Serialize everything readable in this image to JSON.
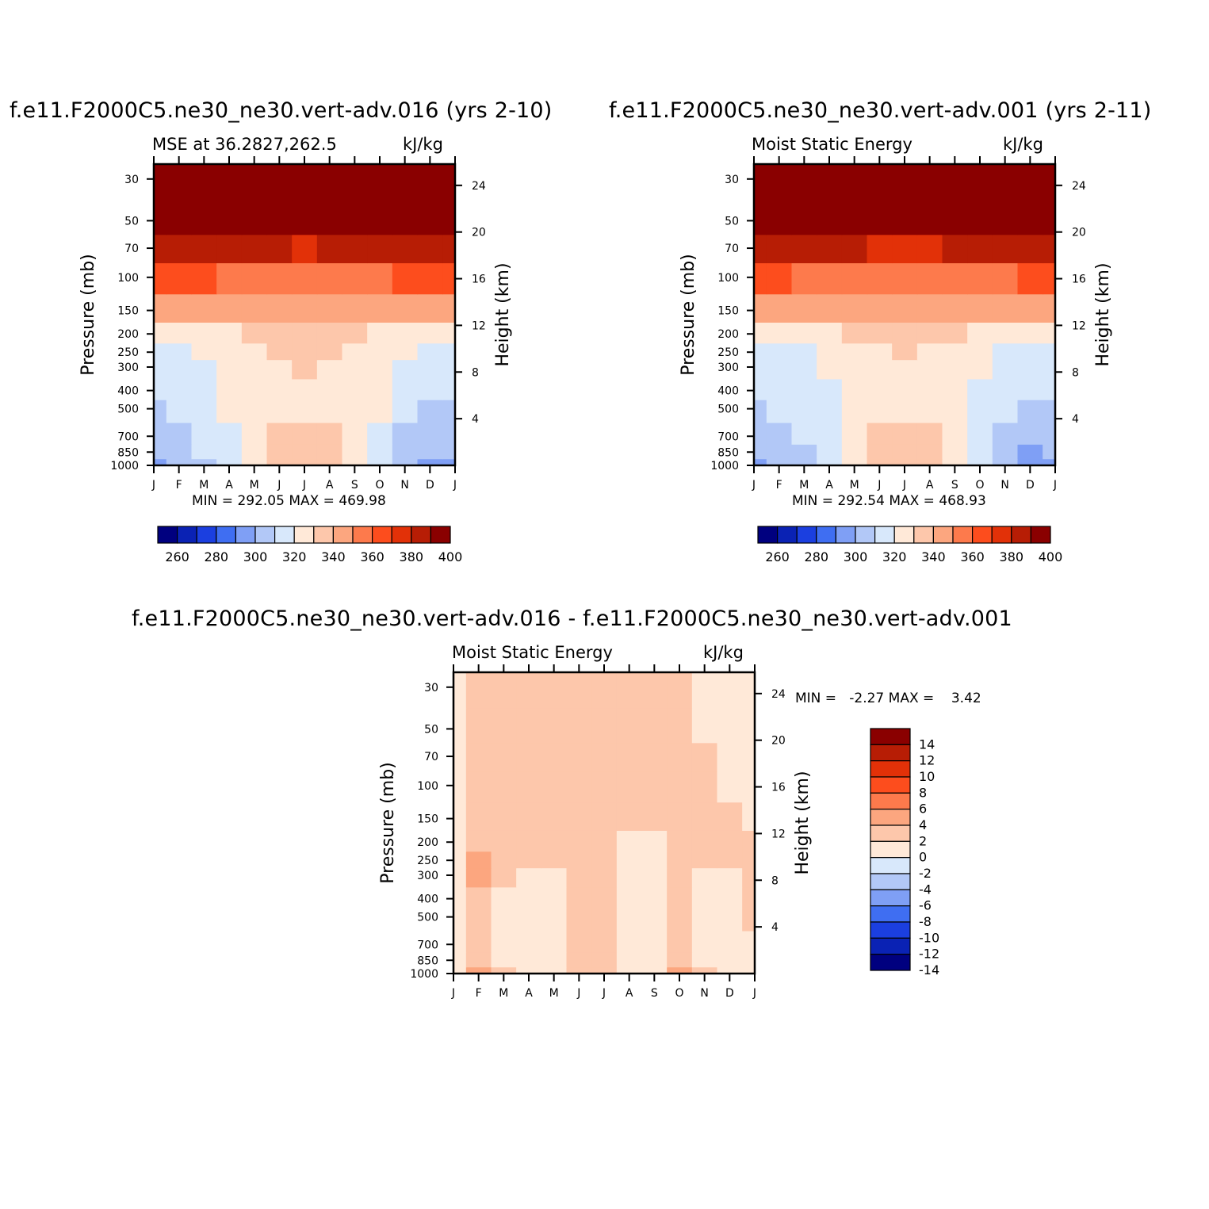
{
  "titles": {
    "left": "f.e11.F2000C5.ne30_ne30.vert-adv.016 (yrs 2-10)",
    "right": "f.e11.F2000C5.ne30_ne30.vert-adv.001 (yrs 2-11)",
    "bottom": "f.e11.F2000C5.ne30_ne30.vert-adv.016 - f.e11.F2000C5.ne30_ne30.vert-adv.001"
  },
  "panels": [
    {
      "left_label": "MSE at 36.2827,262.5",
      "right_label": "kJ/kg",
      "stats": "MIN = 292.05 MAX = 469.98"
    },
    {
      "left_label": "Moist Static Energy",
      "right_label": "kJ/kg",
      "stats": "MIN = 292.54 MAX = 468.93"
    },
    {
      "left_label": "Moist Static Energy",
      "right_label": "kJ/kg",
      "stats": "MIN =   -2.27 MAX =    3.42"
    }
  ],
  "axes": {
    "ylabel_left": "Pressure (mb)",
    "ylabel_right": "Height (km)",
    "pressure_ticks": [
      30,
      50,
      70,
      100,
      150,
      200,
      250,
      300,
      400,
      500,
      700,
      850,
      1000
    ],
    "height_ticks": [
      4,
      8,
      12,
      16,
      20,
      24
    ],
    "month_ticks": [
      "J",
      "F",
      "M",
      "A",
      "M",
      "J",
      "J",
      "A",
      "S",
      "O",
      "N",
      "D",
      "J"
    ]
  },
  "colorbars": {
    "mse": {
      "colors": [
        "#00007f",
        "#0a22b4",
        "#1b3fe0",
        "#3f6ef2",
        "#7f9ff5",
        "#b2c8f7",
        "#d8e8fb",
        "#ffe9d8",
        "#fdc7ab",
        "#fca67f",
        "#fd7a4c",
        "#fd4d1d",
        "#e23108",
        "#b71d05",
        "#8a0000"
      ],
      "labels": [
        "260",
        "280",
        "300",
        "320",
        "340",
        "360",
        "380",
        "400"
      ]
    },
    "diff": {
      "colors": [
        "#00007f",
        "#0a22b4",
        "#1b3fe0",
        "#3f6ef2",
        "#7f9ff5",
        "#b2c8f7",
        "#d8e8fb",
        "#ffe9d8",
        "#fdc7ab",
        "#fca67f",
        "#fd7a4c",
        "#fd4d1d",
        "#e23108",
        "#b71d05",
        "#8a0000"
      ],
      "labels": [
        "14",
        "12",
        "10",
        "8",
        "6",
        "4",
        "2",
        "0",
        "-2",
        "-4",
        "-6",
        "-8",
        "-10",
        "-12",
        "-14"
      ]
    }
  },
  "chart_data": [
    {
      "type": "heatmap",
      "title": "MSE at 36.2827,262.5",
      "units": "kJ/kg",
      "xlabel": "",
      "ylabel": "Pressure (mb)",
      "y2label": "Height (km)",
      "x": [
        "J",
        "F",
        "M",
        "A",
        "M",
        "J",
        "J",
        "A",
        "S",
        "O",
        "N",
        "D",
        "J"
      ],
      "y_pressure": [
        1000,
        850,
        700,
        500,
        400,
        300,
        250,
        200,
        150,
        100,
        70,
        50,
        30
      ],
      "values": [
        [
          298,
          304,
          306,
          316,
          326,
          334,
          335,
          334,
          326,
          316,
          304,
          297,
          298
        ],
        [
          302,
          307,
          310,
          318,
          327,
          334,
          336,
          334,
          327,
          318,
          307,
          300,
          302
        ],
        [
          305,
          309,
          312,
          319,
          327,
          332,
          335,
          332,
          327,
          319,
          309,
          304,
          305
        ],
        [
          309,
          311,
          314,
          320,
          325,
          327,
          328,
          327,
          325,
          320,
          314,
          309,
          309
        ],
        [
          312,
          313,
          316,
          320,
          323,
          326,
          327,
          326,
          323,
          320,
          316,
          312,
          312
        ],
        [
          316,
          317,
          318,
          321,
          324,
          328,
          330,
          328,
          324,
          321,
          318,
          316,
          316
        ],
        [
          318,
          319,
          320,
          323,
          326,
          330,
          331,
          330,
          326,
          323,
          320,
          318,
          318
        ],
        [
          324,
          325,
          326,
          328,
          331,
          334,
          335,
          334,
          331,
          328,
          326,
          324,
          324
        ],
        [
          342,
          342,
          343,
          344,
          346,
          348,
          349,
          348,
          346,
          344,
          343,
          342,
          342
        ],
        [
          362,
          361,
          360,
          359,
          358,
          357,
          356,
          357,
          358,
          359,
          360,
          361,
          362
        ],
        [
          385,
          384,
          383,
          382,
          381,
          380,
          379,
          380,
          381,
          382,
          383,
          384,
          385
        ],
        [
          412,
          412,
          412,
          412,
          412,
          412,
          412,
          412,
          412,
          412,
          412,
          412,
          412
        ],
        [
          450,
          450,
          450,
          450,
          450,
          450,
          450,
          450,
          450,
          450,
          450,
          450,
          450
        ]
      ],
      "levels": [
        260,
        270,
        280,
        290,
        300,
        310,
        320,
        330,
        340,
        350,
        360,
        370,
        380,
        390,
        400
      ],
      "min": 292.05,
      "max": 469.98
    },
    {
      "type": "heatmap",
      "title": "Moist Static Energy",
      "units": "kJ/kg",
      "xlabel": "",
      "ylabel": "Pressure (mb)",
      "y2label": "Height (km)",
      "x": [
        "J",
        "F",
        "M",
        "A",
        "M",
        "J",
        "J",
        "A",
        "S",
        "O",
        "N",
        "D",
        "J"
      ],
      "y_pressure": [
        1000,
        850,
        700,
        500,
        400,
        300,
        250,
        200,
        150,
        100,
        70,
        50,
        30
      ],
      "values": [
        [
          297,
          303,
          306,
          315,
          325,
          333,
          334,
          333,
          325,
          315,
          303,
          296,
          297
        ],
        [
          301,
          306,
          309,
          317,
          326,
          333,
          335,
          333,
          326,
          317,
          306,
          299,
          301
        ],
        [
          304,
          308,
          311,
          318,
          326,
          331,
          334,
          331,
          326,
          318,
          308,
          303,
          304
        ],
        [
          308,
          310,
          313,
          319,
          324,
          326,
          327,
          326,
          324,
          319,
          313,
          308,
          308
        ],
        [
          311,
          312,
          315,
          319,
          322,
          325,
          326,
          325,
          322,
          319,
          315,
          311,
          311
        ],
        [
          315,
          316,
          317,
          320,
          323,
          327,
          329,
          327,
          323,
          320,
          317,
          315,
          315
        ],
        [
          317,
          318,
          319,
          322,
          325,
          329,
          330,
          329,
          325,
          322,
          319,
          317,
          317
        ],
        [
          323,
          324,
          325,
          327,
          330,
          333,
          334,
          333,
          330,
          327,
          325,
          323,
          323
        ],
        [
          341,
          341,
          342,
          343,
          345,
          347,
          348,
          347,
          345,
          343,
          342,
          341,
          341
        ],
        [
          361,
          360,
          359,
          358,
          357,
          356,
          355,
          356,
          357,
          358,
          359,
          360,
          361
        ],
        [
          384,
          383,
          382,
          381,
          380,
          379,
          378,
          379,
          380,
          381,
          382,
          383,
          384
        ],
        [
          411,
          411,
          411,
          411,
          411,
          411,
          411,
          411,
          411,
          411,
          411,
          411,
          411
        ],
        [
          449,
          449,
          449,
          449,
          449,
          449,
          449,
          449,
          449,
          449,
          449,
          449,
          449
        ]
      ],
      "levels": [
        260,
        270,
        280,
        290,
        300,
        310,
        320,
        330,
        340,
        350,
        360,
        370,
        380,
        390,
        400
      ],
      "min": 292.54,
      "max": 468.93
    },
    {
      "type": "heatmap",
      "title": "Moist Static Energy",
      "units": "kJ/kg",
      "xlabel": "",
      "ylabel": "Pressure (mb)",
      "y2label": "Height (km)",
      "x": [
        "J",
        "F",
        "M",
        "A",
        "M",
        "J",
        "J",
        "A",
        "S",
        "O",
        "N",
        "D",
        "J"
      ],
      "y_pressure": [
        1000,
        850,
        700,
        500,
        400,
        300,
        250,
        200,
        150,
        100,
        70,
        50,
        30
      ],
      "values": [
        [
          -0.5,
          2.5,
          0.5,
          -0.8,
          -0.3,
          0.5,
          0.4,
          -0.5,
          -0.6,
          2.2,
          0.3,
          -0.4,
          -0.5
        ],
        [
          -0.4,
          1.5,
          -0.5,
          -0.7,
          -0.6,
          0.5,
          0.4,
          -0.6,
          -0.6,
          0.8,
          -0.5,
          -0.5,
          -0.3
        ],
        [
          -0.3,
          0.8,
          -0.6,
          -0.6,
          -0.6,
          0.5,
          0.4,
          -0.6,
          -0.6,
          0.5,
          -0.6,
          -0.5,
          -0.2
        ],
        [
          -0.3,
          0.7,
          -0.6,
          -0.6,
          -0.6,
          0.5,
          0.4,
          -0.6,
          -0.6,
          0.5,
          -0.6,
          -0.5,
          0.3
        ],
        [
          -0.3,
          0.7,
          -0.5,
          -0.6,
          -0.6,
          0.5,
          0.4,
          -0.6,
          -0.6,
          0.5,
          -0.6,
          -0.5,
          0.3
        ],
        [
          -0.3,
          2.3,
          0.6,
          -0.4,
          -0.4,
          0.5,
          0.4,
          -0.6,
          -0.6,
          0.5,
          -0.5,
          -0.4,
          0.3
        ],
        [
          -0.3,
          2.6,
          0.7,
          0.5,
          0.5,
          0.5,
          0.4,
          -0.5,
          -0.5,
          0.5,
          0.3,
          0.3,
          0.3
        ],
        [
          -0.3,
          0.8,
          0.6,
          0.6,
          0.6,
          0.5,
          0.4,
          -0.5,
          -0.3,
          0.5,
          0.4,
          0.3,
          0.3
        ],
        [
          -0.3,
          0.6,
          0.6,
          0.6,
          0.6,
          0.5,
          0.4,
          0.4,
          0.4,
          0.5,
          0.4,
          0.3,
          -0.3
        ],
        [
          -0.3,
          0.6,
          0.6,
          0.6,
          0.6,
          0.5,
          0.4,
          0.4,
          0.4,
          0.5,
          0.4,
          -0.3,
          -0.3
        ],
        [
          -0.3,
          0.6,
          0.6,
          0.6,
          0.6,
          0.5,
          0.4,
          0.4,
          0.4,
          0.5,
          0.3,
          -0.4,
          -0.4
        ],
        [
          -0.3,
          0.6,
          0.6,
          0.6,
          0.6,
          0.5,
          0.4,
          0.4,
          0.4,
          0.4,
          -0.3,
          -0.4,
          -0.4
        ],
        [
          -0.3,
          0.6,
          0.6,
          0.6,
          0.6,
          0.5,
          0.4,
          0.4,
          0.4,
          0.4,
          -0.3,
          -0.4,
          -0.4
        ]
      ],
      "levels": [
        -14,
        -12,
        -10,
        -8,
        -6,
        -4,
        -2,
        0,
        2,
        4,
        6,
        8,
        10,
        12,
        14
      ],
      "min": -2.27,
      "max": 3.42
    }
  ]
}
